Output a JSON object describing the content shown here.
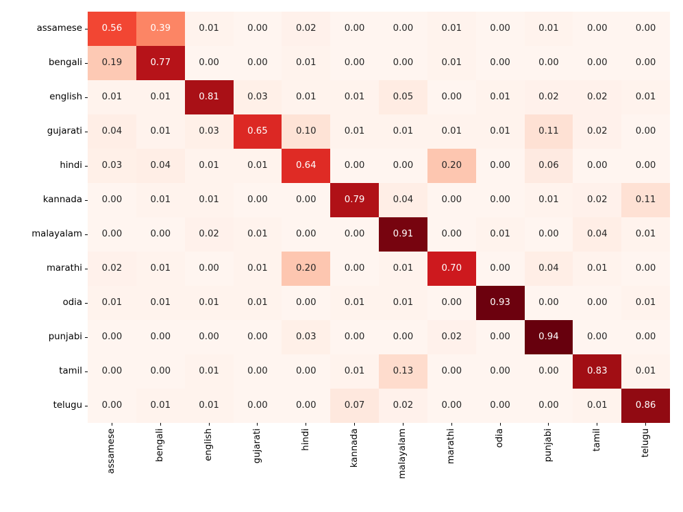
{
  "figure": {
    "background": "#ffffff"
  },
  "chart_data": {
    "type": "heatmap",
    "title": "",
    "xlabel": "",
    "ylabel": "",
    "legend": "none",
    "grid": false,
    "colormap": "Reds",
    "colormap_stops": [
      "#fff5f0",
      "#fee0d2",
      "#fcbba1",
      "#fc9272",
      "#fb6a4a",
      "#ef3b2c",
      "#cb181d",
      "#a50f15",
      "#67000d"
    ],
    "vmin": 0.0,
    "vmax": 0.94,
    "value_decimals": 2,
    "annotation_dark_color": "#262626",
    "annotation_light_color": "#ffffff",
    "tick_color": "#000000",
    "row_labels": [
      "assamese",
      "bengali",
      "english",
      "gujarati",
      "hindi",
      "kannada",
      "malayalam",
      "marathi",
      "odia",
      "punjabi",
      "tamil",
      "telugu"
    ],
    "col_labels": [
      "assamese",
      "bengali",
      "english",
      "gujarati",
      "hindi",
      "kannada",
      "malayalam",
      "marathi",
      "odia",
      "punjabi",
      "tamil",
      "telugu"
    ],
    "matrix": [
      [
        0.56,
        0.39,
        0.01,
        0.0,
        0.02,
        0.0,
        0.0,
        0.01,
        0.0,
        0.01,
        0.0,
        0.0
      ],
      [
        0.19,
        0.77,
        0.0,
        0.0,
        0.01,
        0.0,
        0.0,
        0.01,
        0.0,
        0.0,
        0.0,
        0.0
      ],
      [
        0.01,
        0.01,
        0.81,
        0.03,
        0.01,
        0.01,
        0.05,
        0.0,
        0.01,
        0.02,
        0.02,
        0.01
      ],
      [
        0.04,
        0.01,
        0.03,
        0.65,
        0.1,
        0.01,
        0.01,
        0.01,
        0.01,
        0.11,
        0.02,
        0.0
      ],
      [
        0.03,
        0.04,
        0.01,
        0.01,
        0.64,
        0.0,
        0.0,
        0.2,
        0.0,
        0.06,
        0.0,
        0.0
      ],
      [
        0.0,
        0.01,
        0.01,
        0.0,
        0.0,
        0.79,
        0.04,
        0.0,
        0.0,
        0.01,
        0.02,
        0.11
      ],
      [
        0.0,
        0.0,
        0.02,
        0.01,
        0.0,
        0.0,
        0.91,
        0.0,
        0.01,
        0.0,
        0.04,
        0.01
      ],
      [
        0.02,
        0.01,
        0.0,
        0.01,
        0.2,
        0.0,
        0.01,
        0.7,
        0.0,
        0.04,
        0.01,
        0.0
      ],
      [
        0.01,
        0.01,
        0.01,
        0.01,
        0.0,
        0.01,
        0.01,
        0.0,
        0.93,
        0.0,
        0.0,
        0.01
      ],
      [
        0.0,
        0.0,
        0.0,
        0.0,
        0.03,
        0.0,
        0.0,
        0.02,
        0.0,
        0.94,
        0.0,
        0.0
      ],
      [
        0.0,
        0.0,
        0.01,
        0.0,
        0.0,
        0.01,
        0.13,
        0.0,
        0.0,
        0.0,
        0.83,
        0.01
      ],
      [
        0.0,
        0.01,
        0.01,
        0.0,
        0.0,
        0.07,
        0.02,
        0.0,
        0.0,
        0.0,
        0.01,
        0.86
      ]
    ]
  }
}
